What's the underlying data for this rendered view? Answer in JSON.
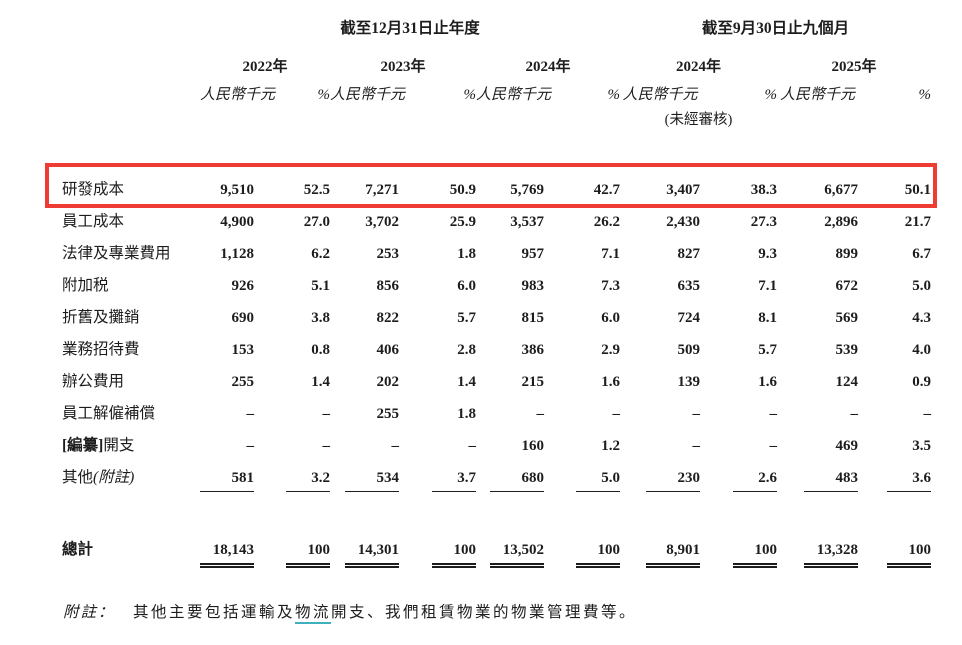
{
  "table": {
    "period_groups": {
      "annual": "截至12月31日止年度",
      "interim": "截至9月30日止九個月"
    },
    "years": [
      "2022年",
      "2023年",
      "2024年",
      "2024年",
      "2025年"
    ],
    "unit_label": "人民幣千元",
    "pct_label": "%",
    "unaudited_label": "(未經審核)",
    "rows": [
      {
        "label": "研發成本",
        "v": [
          "9,510",
          "52.5",
          "7,271",
          "50.9",
          "5,769",
          "42.7",
          "3,407",
          "38.3",
          "6,677",
          "50.1"
        ]
      },
      {
        "label": "員工成本",
        "v": [
          "4,900",
          "27.0",
          "3,702",
          "25.9",
          "3,537",
          "26.2",
          "2,430",
          "27.3",
          "2,896",
          "21.7"
        ]
      },
      {
        "label": "法律及專業費用",
        "v": [
          "1,128",
          "6.2",
          "253",
          "1.8",
          "957",
          "7.1",
          "827",
          "9.3",
          "899",
          "6.7"
        ]
      },
      {
        "label": "附加税",
        "v": [
          "926",
          "5.1",
          "856",
          "6.0",
          "983",
          "7.3",
          "635",
          "7.1",
          "672",
          "5.0"
        ]
      },
      {
        "label": "折舊及攤銷",
        "v": [
          "690",
          "3.8",
          "822",
          "5.7",
          "815",
          "6.0",
          "724",
          "8.1",
          "569",
          "4.3"
        ]
      },
      {
        "label": "業務招待費",
        "v": [
          "153",
          "0.8",
          "406",
          "2.8",
          "386",
          "2.9",
          "509",
          "5.7",
          "539",
          "4.0"
        ]
      },
      {
        "label": "辦公費用",
        "v": [
          "255",
          "1.4",
          "202",
          "1.4",
          "215",
          "1.6",
          "139",
          "1.6",
          "124",
          "0.9"
        ]
      },
      {
        "label": "員工解僱補償",
        "v": [
          "–",
          "–",
          "255",
          "1.8",
          "–",
          "–",
          "–",
          "–",
          "–",
          "–"
        ]
      },
      {
        "label_bold": "[編纂]",
        "label_rest": "開支",
        "v": [
          "–",
          "–",
          "–",
          "–",
          "160",
          "1.2",
          "–",
          "–",
          "469",
          "3.5"
        ]
      },
      {
        "label": "其他",
        "label_italic": "(附註)",
        "v": [
          "581",
          "3.2",
          "534",
          "3.7",
          "680",
          "5.0",
          "230",
          "2.6",
          "483",
          "3.6"
        ]
      }
    ],
    "total": {
      "label": "總計",
      "v": [
        "18,143",
        "100",
        "14,301",
        "100",
        "13,502",
        "100",
        "8,901",
        "100",
        "13,328",
        "100"
      ]
    }
  },
  "note": {
    "label": "附註：",
    "text_before": "其他主要包括運輸及",
    "text_highlight": "物流",
    "text_after": "開支、我們租賃物業的物業管理費等。"
  },
  "colors": {
    "highlight_border": "#ee3b33",
    "note_underline": "#3fb0bd",
    "text": "#1d1d1d"
  }
}
